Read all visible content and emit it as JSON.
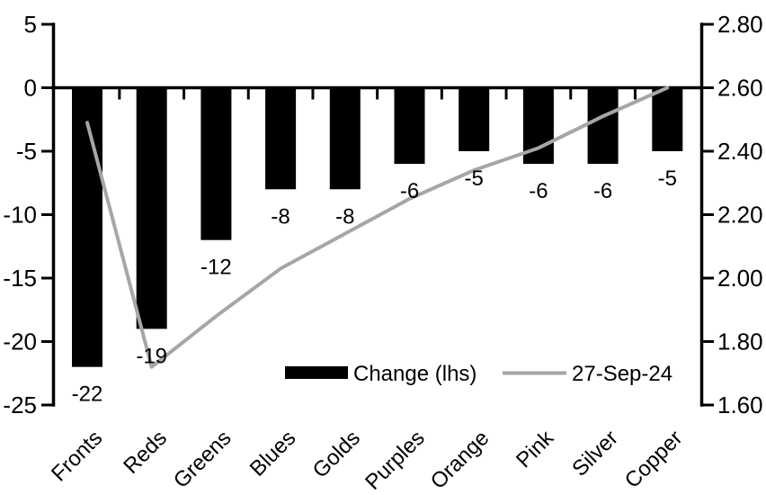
{
  "chart_data": {
    "type": "bar",
    "title": "",
    "categories": [
      "Fronts",
      "Reds",
      "Greens",
      "Blues",
      "Golds",
      "Purples",
      "Orange",
      "Pink",
      "Silver",
      "Copper"
    ],
    "series": [
      {
        "name": "Change (lhs)",
        "type": "bar",
        "axis": "left",
        "color": "#000000",
        "values": [
          -22,
          -19,
          -12,
          -8,
          -8,
          -6,
          -5,
          -6,
          -6,
          -5
        ],
        "data_labels": [
          "-22",
          "-19",
          "-12",
          "-8",
          "-8",
          "-6",
          "-5",
          "-6",
          "-6",
          "-5"
        ]
      },
      {
        "name": "27-Sep-24",
        "type": "line",
        "axis": "right",
        "color": "#a6a6a6",
        "values": [
          2.49,
          1.72,
          1.88,
          2.03,
          2.14,
          2.25,
          2.34,
          2.41,
          2.51,
          2.6
        ]
      }
    ],
    "left_axis": {
      "min": -25,
      "max": 5,
      "step": 5,
      "tick_labels": [
        "5",
        "0",
        "-5",
        "-10",
        "-15",
        "-20",
        "-25"
      ]
    },
    "right_axis": {
      "min": 1.6,
      "max": 2.8,
      "step": 0.2,
      "tick_labels": [
        "2.80",
        "2.60",
        "2.40",
        "2.20",
        "2.00",
        "1.80",
        "1.60"
      ]
    },
    "legend": {
      "position": "bottom-inside",
      "entries": [
        {
          "label": "Change (lhs)",
          "swatch": "bar",
          "color": "#000000"
        },
        {
          "label": "27-Sep-24",
          "swatch": "line",
          "color": "#a6a6a6"
        }
      ]
    },
    "grid": false,
    "axis_color": "#000000",
    "background": "#ffffff"
  }
}
